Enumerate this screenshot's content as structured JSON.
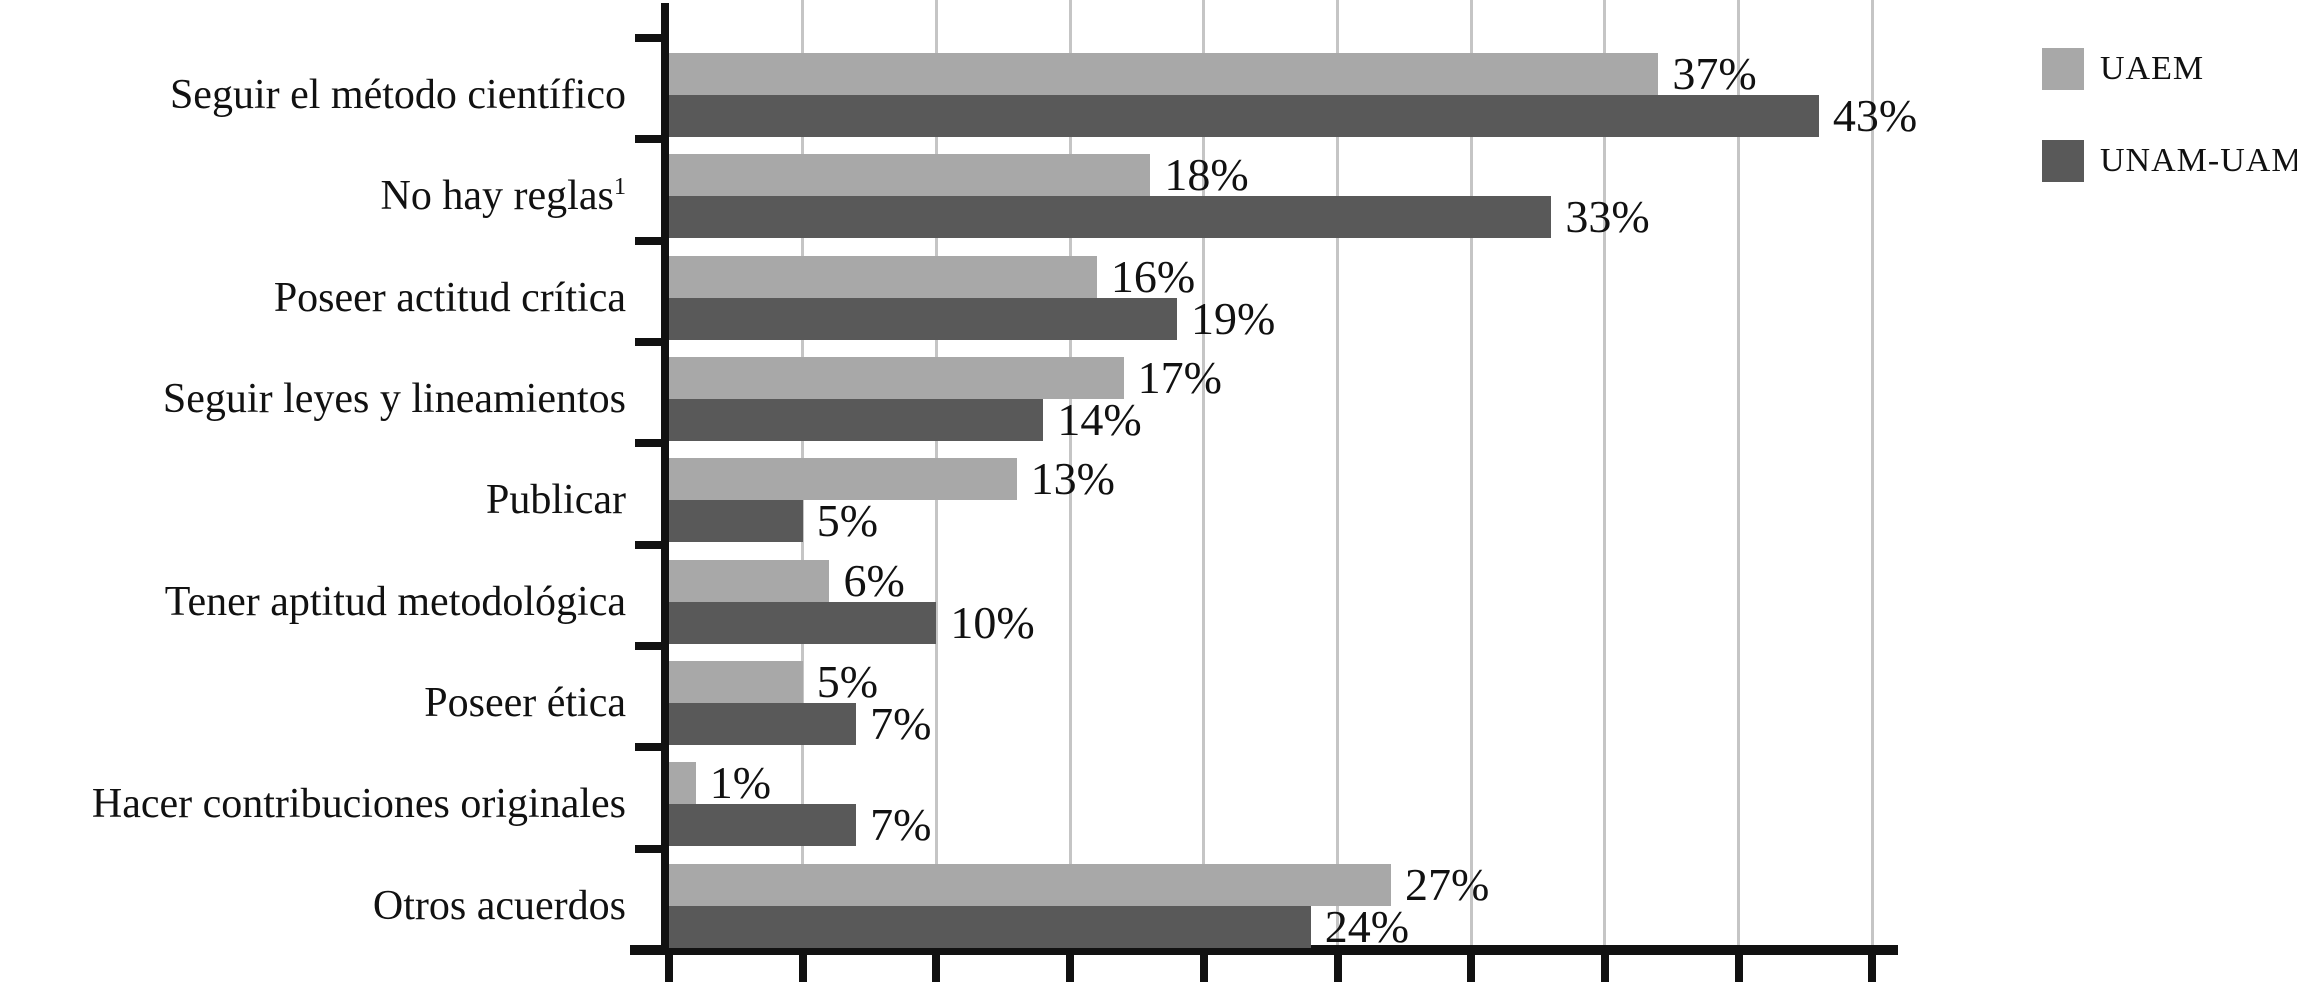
{
  "figure": {
    "background": "#ffffff",
    "axis_color": "#111111",
    "gridline_color": "#c5c5c5",
    "text_color": "#111111"
  },
  "chart_data": {
    "type": "bar",
    "orientation": "horizontal",
    "title": "",
    "categories": [
      {
        "label": "Seguir el método científico",
        "sup": ""
      },
      {
        "label": "No hay reglas",
        "sup": "1"
      },
      {
        "label": "Poseer actitud crítica",
        "sup": ""
      },
      {
        "label": "Seguir leyes y lineamientos",
        "sup": ""
      },
      {
        "label": "Publicar",
        "sup": ""
      },
      {
        "label": "Tener aptitud metodológica",
        "sup": ""
      },
      {
        "label": "Poseer ética",
        "sup": ""
      },
      {
        "label": "Hacer contribuciones originales",
        "sup": ""
      },
      {
        "label": "Otros acuerdos",
        "sup": ""
      }
    ],
    "series": [
      {
        "name": "UAEM",
        "color": "#a8a8a8",
        "values": [
          37,
          18,
          16,
          17,
          13,
          6,
          5,
          1,
          27
        ],
        "labels": [
          "37%",
          "18%",
          "16%",
          "17%",
          "13%",
          "6%",
          "5%",
          "1%",
          "27%"
        ]
      },
      {
        "name": "UNAM-UAM",
        "color": "#595959",
        "values": [
          43,
          33,
          19,
          14,
          5,
          10,
          7,
          7,
          24
        ],
        "labels": [
          "43%",
          "33%",
          "19%",
          "14%",
          "5%",
          "10%",
          "7%",
          "7%",
          "24%"
        ]
      }
    ],
    "xlim": [
      0,
      45
    ],
    "x_tick_step": 5,
    "x_tick_labels_visible": false,
    "grid": true,
    "legend_position": "top-right"
  }
}
